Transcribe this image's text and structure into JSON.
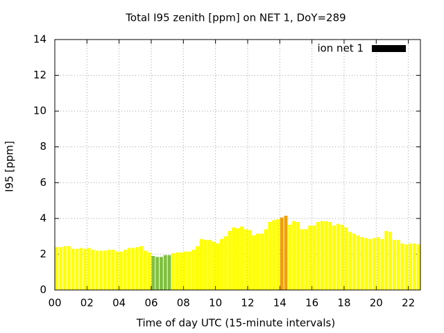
{
  "chart_data": {
    "type": "bar",
    "title": "Total I95 zenith [ppm] on NET 1, DoY=289",
    "x_label": "Time of day UTC (15-minute intervals)",
    "y_label": "I95 [ppm]",
    "x": [
      0,
      0.25,
      0.5,
      0.75,
      1,
      1.25,
      1.5,
      1.75,
      2,
      2.25,
      2.5,
      2.75,
      3,
      3.25,
      3.5,
      3.75,
      4,
      4.25,
      4.5,
      4.75,
      5,
      5.25,
      5.5,
      5.75,
      6,
      6.25,
      6.5,
      6.75,
      7,
      7.25,
      7.5,
      7.75,
      8,
      8.25,
      8.5,
      8.75,
      9,
      9.25,
      9.5,
      9.75,
      10,
      10.25,
      10.5,
      10.75,
      11,
      11.25,
      11.5,
      11.75,
      12,
      12.25,
      12.5,
      12.75,
      13,
      13.25,
      13.5,
      13.75,
      14,
      14.25,
      14.5,
      14.75,
      15,
      15.25,
      15.5,
      15.75,
      16,
      16.25,
      16.5,
      16.75,
      17,
      17.25,
      17.5,
      17.75,
      18,
      18.25,
      18.5,
      18.75,
      19,
      19.25,
      19.5,
      19.75,
      20,
      20.25,
      20.5,
      20.75,
      21,
      21.25,
      21.5,
      21.75,
      22,
      22.25,
      22.5
    ],
    "series": [
      {
        "name": "ion net 1",
        "color": "#000000",
        "values": [
          2.4,
          2.4,
          2.45,
          2.45,
          2.3,
          2.3,
          2.35,
          2.3,
          2.35,
          2.25,
          2.2,
          2.2,
          2.2,
          2.25,
          2.25,
          2.15,
          2.15,
          2.25,
          2.35,
          2.35,
          2.4,
          2.45,
          2.2,
          2.1,
          1.9,
          1.85,
          1.85,
          1.95,
          1.95,
          2.05,
          2.1,
          2.1,
          2.15,
          2.15,
          2.25,
          2.45,
          2.85,
          2.8,
          2.8,
          2.7,
          2.6,
          2.85,
          3.0,
          3.3,
          3.5,
          3.45,
          3.55,
          3.4,
          3.35,
          3.05,
          3.15,
          3.15,
          3.4,
          3.8,
          3.9,
          3.95,
          4.05,
          4.15,
          3.65,
          3.85,
          3.8,
          3.4,
          3.4,
          3.6,
          3.6,
          3.8,
          3.85,
          3.85,
          3.8,
          3.6,
          3.7,
          3.65,
          3.5,
          3.25,
          3.15,
          3.05,
          2.95,
          2.9,
          2.85,
          2.9,
          2.95,
          2.85,
          3.3,
          3.25,
          2.8,
          2.8,
          2.6,
          2.55,
          2.6,
          2.6,
          2.55
        ],
        "bar_colors": [
          "#ffff00",
          "#ffff00",
          "#ffff00",
          "#ffff00",
          "#ffff00",
          "#ffff00",
          "#ffff00",
          "#ffff00",
          "#ffff00",
          "#ffff00",
          "#ffff00",
          "#ffff00",
          "#ffff00",
          "#ffff00",
          "#ffff00",
          "#ffff00",
          "#ffff00",
          "#ffff00",
          "#ffff00",
          "#ffff00",
          "#ffff00",
          "#ffff00",
          "#ffff00",
          "#ffff00",
          "#80c040",
          "#80c040",
          "#80c040",
          "#80c040",
          "#80c040",
          "#ffff00",
          "#ffff00",
          "#ffff00",
          "#ffff00",
          "#ffff00",
          "#ffff00",
          "#ffff00",
          "#ffff00",
          "#ffff00",
          "#ffff00",
          "#ffff00",
          "#ffff00",
          "#ffff00",
          "#ffff00",
          "#ffff00",
          "#ffff00",
          "#ffff00",
          "#ffff00",
          "#ffff00",
          "#ffff00",
          "#ffff00",
          "#ffff00",
          "#ffff00",
          "#ffff00",
          "#ffff00",
          "#ffff00",
          "#ffff00",
          "#f0a000",
          "#f0a000",
          "#ffff00",
          "#ffff00",
          "#ffff00",
          "#ffff00",
          "#ffff00",
          "#ffff00",
          "#ffff00",
          "#ffff00",
          "#ffff00",
          "#ffff00",
          "#ffff00",
          "#ffff00",
          "#ffff00",
          "#ffff00",
          "#ffff00",
          "#ffff00",
          "#ffff00",
          "#ffff00",
          "#ffff00",
          "#ffff00",
          "#ffff00",
          "#ffff00",
          "#ffff00",
          "#ffff00",
          "#ffff00",
          "#ffff00",
          "#ffff00",
          "#ffff00",
          "#ffff00",
          "#ffff00",
          "#ffff00",
          "#ffff00",
          "#ffff00"
        ]
      }
    ],
    "xlim": [
      0,
      22.75
    ],
    "ylim": [
      0,
      14
    ],
    "xticks": [
      {
        "value": 0,
        "label": "00"
      },
      {
        "value": 2,
        "label": "02"
      },
      {
        "value": 4,
        "label": "04"
      },
      {
        "value": 6,
        "label": "06"
      },
      {
        "value": 8,
        "label": "08"
      },
      {
        "value": 10,
        "label": "10"
      },
      {
        "value": 12,
        "label": "12"
      },
      {
        "value": 14,
        "label": "14"
      },
      {
        "value": 16,
        "label": "16"
      },
      {
        "value": 18,
        "label": "18"
      },
      {
        "value": 20,
        "label": "20"
      },
      {
        "value": 22,
        "label": "22"
      }
    ],
    "yticks": [
      0,
      2,
      4,
      6,
      8,
      10,
      12,
      14
    ],
    "grid": true,
    "legend": "top-right"
  }
}
